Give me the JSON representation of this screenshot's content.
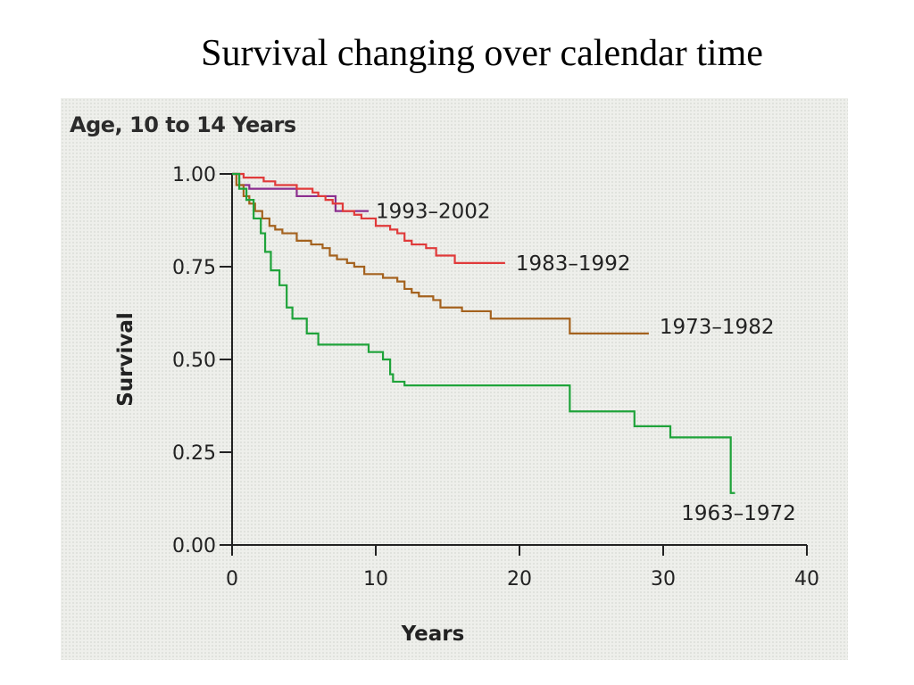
{
  "slide": {
    "title": "Survival changing over calendar time"
  },
  "chart_data": {
    "type": "line",
    "step": true,
    "title": "Age, 10 to 14 Years",
    "xlabel": "Years",
    "ylabel": "Survival",
    "xlim": [
      0,
      40
    ],
    "ylim": [
      0,
      1
    ],
    "xticks": [
      0,
      10,
      20,
      30,
      40
    ],
    "yticks": [
      0.0,
      0.25,
      0.5,
      0.75,
      1.0
    ],
    "xtick_labels": [
      "0",
      "10",
      "20",
      "30",
      "40"
    ],
    "ytick_labels": [
      "0.00",
      "0.25",
      "0.50",
      "0.75",
      "1.00"
    ],
    "grid": false,
    "legend": "inline labels at line ends",
    "series": [
      {
        "name": "1993–2002",
        "color": "#8b2f8f",
        "x": [
          0,
          0.5,
          1.2,
          4.5,
          7.2,
          9.5
        ],
        "y": [
          1.0,
          0.97,
          0.96,
          0.94,
          0.9,
          0.9
        ]
      },
      {
        "name": "1983–1992",
        "color": "#e03a3a",
        "x": [
          0,
          0.8,
          2.2,
          3.0,
          4.5,
          5.6,
          6.0,
          6.5,
          7.0,
          7.7,
          8.5,
          9.0,
          10.0,
          11.0,
          11.5,
          12.0,
          12.5,
          13.5,
          14.2,
          15.5,
          19.0
        ],
        "y": [
          1.0,
          0.99,
          0.98,
          0.97,
          0.96,
          0.95,
          0.94,
          0.93,
          0.92,
          0.9,
          0.89,
          0.88,
          0.86,
          0.85,
          0.84,
          0.82,
          0.81,
          0.8,
          0.78,
          0.76,
          0.76
        ]
      },
      {
        "name": "1973–1982",
        "color": "#a4621e",
        "x": [
          0,
          0.3,
          0.8,
          1.2,
          1.6,
          2.1,
          2.6,
          3.0,
          3.5,
          4.5,
          5.5,
          6.3,
          6.8,
          7.3,
          8.0,
          8.5,
          9.2,
          10.5,
          11.5,
          12.0,
          12.5,
          13.0,
          14.0,
          14.5,
          15.0,
          16.0,
          18.0,
          23.5,
          29.0
        ],
        "y": [
          1.0,
          0.97,
          0.94,
          0.92,
          0.9,
          0.88,
          0.86,
          0.85,
          0.84,
          0.82,
          0.81,
          0.8,
          0.78,
          0.77,
          0.76,
          0.75,
          0.73,
          0.72,
          0.71,
          0.69,
          0.68,
          0.67,
          0.66,
          0.64,
          0.64,
          0.63,
          0.61,
          0.57,
          0.57
        ]
      },
      {
        "name": "1963–1972",
        "color": "#1fa33a",
        "x": [
          0,
          0.5,
          1.0,
          1.5,
          2.0,
          2.3,
          2.7,
          3.3,
          3.8,
          4.2,
          5.2,
          6.0,
          9.5,
          10.5,
          11.0,
          11.2,
          12.0,
          23.0,
          23.5,
          28.0,
          30.5,
          34.7,
          35.0
        ],
        "y": [
          1.0,
          0.96,
          0.93,
          0.88,
          0.84,
          0.79,
          0.74,
          0.7,
          0.64,
          0.61,
          0.57,
          0.54,
          0.52,
          0.5,
          0.46,
          0.44,
          0.43,
          0.43,
          0.36,
          0.32,
          0.29,
          0.14,
          0.14
        ]
      }
    ]
  }
}
